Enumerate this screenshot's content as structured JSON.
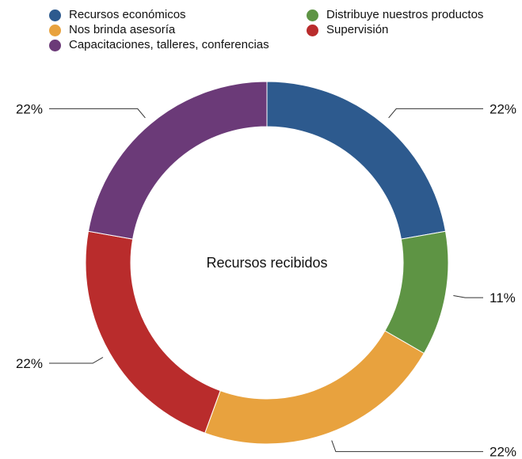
{
  "chart_data": {
    "type": "pie",
    "variant": "donut",
    "center_label": "Recursos recibidos",
    "legend_placement": "top",
    "series": [
      {
        "name": "Recursos económicos",
        "value": 22,
        "label": "22%",
        "color": "#2d5a8e"
      },
      {
        "name": "Distribuye nuestros productos",
        "value": 11,
        "label": "11%",
        "color": "#5e9444"
      },
      {
        "name": "Nos brinda asesoría",
        "value": 22,
        "label": "22%",
        "color": "#e8a23e"
      },
      {
        "name": "Supervisión",
        "value": 22,
        "label": "22%",
        "color": "#b92c2c"
      },
      {
        "name": "Capacitaciones, talleres, conferencias",
        "value": 22,
        "label": "22%",
        "color": "#6b3a78"
      }
    ]
  }
}
